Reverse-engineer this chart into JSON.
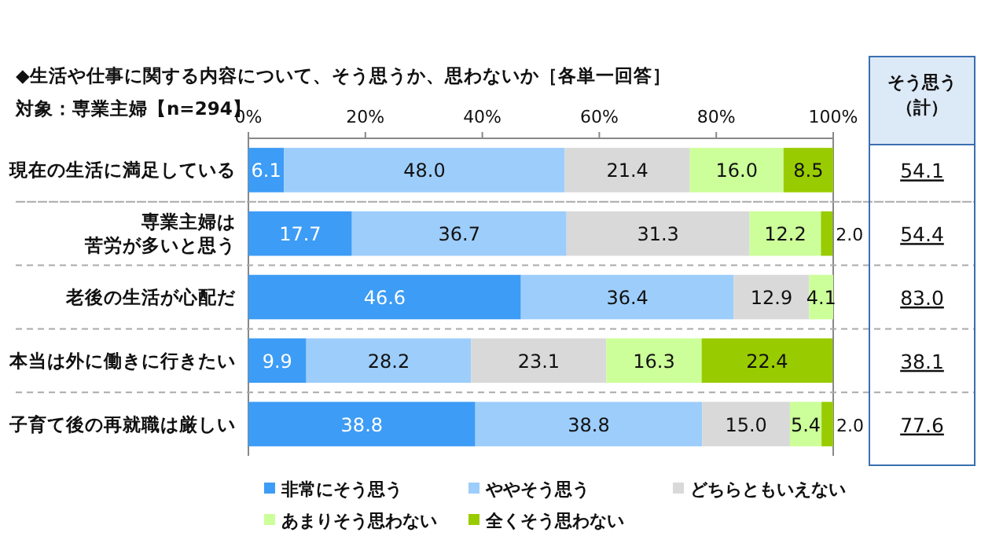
{
  "chart_data": {
    "type": "bar",
    "orientation": "horizontal",
    "stacked": true,
    "title": "◆生活や仕事に関する内容について、そう思うか、思わないか［各単一回答］",
    "subtitle": "対象：専業主婦【n=294】",
    "y2label": "そう思う（計）",
    "categories": [
      "現在の生活に満足している",
      "専業主婦は苦労が多いと思う",
      "老後の生活が心配だ",
      "本当は外に働きに行きたい",
      "子育て後の再就職は厳しい"
    ],
    "series": [
      {
        "name": "非常にそう思う",
        "color": "#3d9cf5",
        "values": [
          6.1,
          17.7,
          46.6,
          9.9,
          38.8
        ],
        "value_labels": [
          "6.1",
          "17.7",
          "46.6",
          "9.9",
          "38.8"
        ]
      },
      {
        "name": "ややそう思う",
        "color": "#9dcdfb",
        "values": [
          48.0,
          36.7,
          36.4,
          28.2,
          38.8
        ],
        "value_labels": [
          "48.0",
          "36.7",
          "36.4",
          "28.2",
          "38.8"
        ]
      },
      {
        "name": "どちらともいえない",
        "color": "#d9d9d9",
        "values": [
          21.4,
          31.3,
          12.9,
          23.1,
          15.0
        ],
        "value_labels": [
          "21.4",
          "31.3",
          "12.9",
          "23.1",
          "15.0"
        ]
      },
      {
        "name": "あまりそう思わない",
        "color": "#ccff99",
        "values": [
          16.0,
          12.2,
          4.1,
          16.3,
          5.4
        ],
        "value_labels": [
          "16.0",
          "12.2",
          "4.1",
          "16.3",
          "5.4"
        ]
      },
      {
        "name": "全くそう思わない",
        "color": "#99cc00",
        "values": [
          8.5,
          2.0,
          null,
          22.4,
          2.0
        ],
        "value_labels": [
          "8.5",
          "2.0",
          null,
          "22.4",
          "2.0"
        ]
      }
    ],
    "xlim": [
      0,
      100
    ],
    "xticks": [
      {
        "value": 0,
        "label": "0%"
      },
      {
        "value": 20,
        "label": "20%"
      },
      {
        "value": 40,
        "label": "40%"
      },
      {
        "value": 60,
        "label": "60%"
      },
      {
        "value": 80,
        "label": "80%"
      },
      {
        "value": 100,
        "label": "100%"
      }
    ],
    "grid": false,
    "legend": "bottom",
    "annotations": [
      "54.1",
      "54.4",
      "83.0",
      "38.1",
      "77.6"
    ]
  }
}
